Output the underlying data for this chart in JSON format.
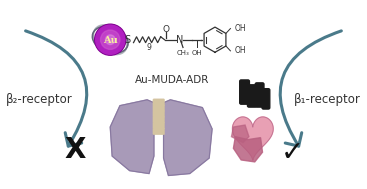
{
  "background_color": "#ffffff",
  "arrow_color": "#4a7a8a",
  "lung_color": "#a89ab8",
  "lung_outline": "#8878a0",
  "trachea_color": "#d4c4a0",
  "heart_main": "#e8a0b4",
  "heart_dark": "#b86080",
  "heart_vessels_color": "#1a1a1a",
  "au_sphere_color": "#b020c0",
  "au_sphere_highlight": "#d060d0",
  "au_sphere_dark": "#800090",
  "au_text": "Au",
  "au_text_color": "#f8f0a0",
  "orbit_color": "#606878",
  "chem_color": "#333333",
  "label_left": "β₂-receptor",
  "label_right": "β₁-receptor",
  "label_compound": "Au-MUDA-ADR",
  "x_mark_color": "#111111",
  "check_mark_color": "#111111",
  "label_fontsize": 8.5,
  "compound_fontsize": 7.5,
  "chem_fontsize": 6.5,
  "arrow_lw": 2.2
}
